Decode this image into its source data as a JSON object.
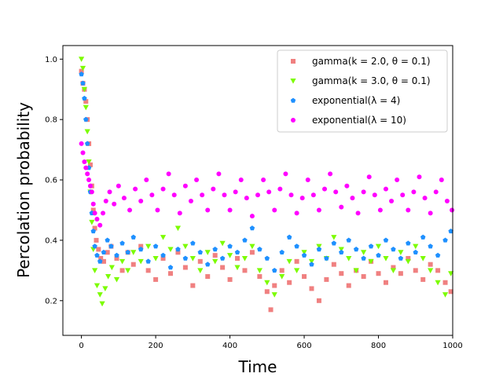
{
  "chart_data": {
    "type": "scatter",
    "xlabel": "Time",
    "ylabel": "Percolation probability",
    "xlim": [
      -50,
      1000
    ],
    "ylim": [
      0.085,
      1.045
    ],
    "x_ticks": [
      0,
      200,
      400,
      600,
      800,
      1000
    ],
    "y_ticks": [
      0.2,
      0.4,
      0.6,
      0.8,
      1.0
    ],
    "x_tick_labels": [
      "0",
      "200",
      "400",
      "600",
      "800",
      "1000"
    ],
    "y_tick_labels": [
      "0.2",
      "0.4",
      "0.6",
      "0.8",
      "1.0"
    ],
    "legend_position": "top-right",
    "grid": false,
    "series": [
      {
        "name": "gamma(k = 2.0, θ = 0.1)",
        "color": "#F08080",
        "marker": "square",
        "points": [
          [
            0,
            0.96
          ],
          [
            4,
            0.92
          ],
          [
            8,
            0.9
          ],
          [
            12,
            0.86
          ],
          [
            16,
            0.8
          ],
          [
            20,
            0.72
          ],
          [
            24,
            0.65
          ],
          [
            28,
            0.58
          ],
          [
            32,
            0.5
          ],
          [
            36,
            0.44
          ],
          [
            40,
            0.4
          ],
          [
            46,
            0.37
          ],
          [
            52,
            0.34
          ],
          [
            60,
            0.33
          ],
          [
            70,
            0.36
          ],
          [
            80,
            0.38
          ],
          [
            95,
            0.34
          ],
          [
            110,
            0.3
          ],
          [
            125,
            0.36
          ],
          [
            140,
            0.32
          ],
          [
            160,
            0.38
          ],
          [
            180,
            0.3
          ],
          [
            200,
            0.27
          ],
          [
            220,
            0.34
          ],
          [
            240,
            0.29
          ],
          [
            260,
            0.36
          ],
          [
            280,
            0.31
          ],
          [
            300,
            0.25
          ],
          [
            320,
            0.33
          ],
          [
            340,
            0.28
          ],
          [
            360,
            0.35
          ],
          [
            380,
            0.31
          ],
          [
            400,
            0.27
          ],
          [
            420,
            0.34
          ],
          [
            440,
            0.3
          ],
          [
            460,
            0.36
          ],
          [
            480,
            0.28
          ],
          [
            500,
            0.23
          ],
          [
            510,
            0.17
          ],
          [
            520,
            0.25
          ],
          [
            540,
            0.3
          ],
          [
            560,
            0.26
          ],
          [
            580,
            0.33
          ],
          [
            600,
            0.28
          ],
          [
            620,
            0.24
          ],
          [
            640,
            0.2
          ],
          [
            660,
            0.27
          ],
          [
            680,
            0.32
          ],
          [
            700,
            0.29
          ],
          [
            720,
            0.25
          ],
          [
            740,
            0.3
          ],
          [
            760,
            0.28
          ],
          [
            780,
            0.33
          ],
          [
            800,
            0.29
          ],
          [
            820,
            0.26
          ],
          [
            840,
            0.31
          ],
          [
            860,
            0.29
          ],
          [
            880,
            0.34
          ],
          [
            900,
            0.3
          ],
          [
            920,
            0.27
          ],
          [
            940,
            0.32
          ],
          [
            960,
            0.3
          ],
          [
            980,
            0.26
          ],
          [
            995,
            0.23
          ]
        ]
      },
      {
        "name": "gamma(k = 3.0, θ = 0.1)",
        "color": "#7CFC00",
        "marker": "triangle-down",
        "points": [
          [
            0,
            1.0
          ],
          [
            4,
            0.97
          ],
          [
            8,
            0.9
          ],
          [
            12,
            0.84
          ],
          [
            16,
            0.76
          ],
          [
            20,
            0.66
          ],
          [
            24,
            0.56
          ],
          [
            28,
            0.46
          ],
          [
            32,
            0.37
          ],
          [
            36,
            0.3
          ],
          [
            42,
            0.25
          ],
          [
            50,
            0.22
          ],
          [
            56,
            0.19
          ],
          [
            64,
            0.24
          ],
          [
            72,
            0.28
          ],
          [
            82,
            0.31
          ],
          [
            95,
            0.27
          ],
          [
            110,
            0.33
          ],
          [
            125,
            0.3
          ],
          [
            140,
            0.36
          ],
          [
            160,
            0.33
          ],
          [
            180,
            0.38
          ],
          [
            200,
            0.34
          ],
          [
            220,
            0.41
          ],
          [
            240,
            0.37
          ],
          [
            260,
            0.44
          ],
          [
            280,
            0.38
          ],
          [
            300,
            0.34
          ],
          [
            320,
            0.3
          ],
          [
            340,
            0.36
          ],
          [
            360,
            0.33
          ],
          [
            380,
            0.39
          ],
          [
            400,
            0.35
          ],
          [
            420,
            0.31
          ],
          [
            440,
            0.34
          ],
          [
            460,
            0.38
          ],
          [
            480,
            0.3
          ],
          [
            500,
            0.26
          ],
          [
            520,
            0.22
          ],
          [
            540,
            0.28
          ],
          [
            560,
            0.33
          ],
          [
            580,
            0.3
          ],
          [
            600,
            0.36
          ],
          [
            620,
            0.33
          ],
          [
            640,
            0.38
          ],
          [
            660,
            0.34
          ],
          [
            680,
            0.41
          ],
          [
            700,
            0.37
          ],
          [
            720,
            0.34
          ],
          [
            740,
            0.3
          ],
          [
            760,
            0.36
          ],
          [
            780,
            0.33
          ],
          [
            800,
            0.38
          ],
          [
            820,
            0.34
          ],
          [
            840,
            0.3
          ],
          [
            860,
            0.36
          ],
          [
            880,
            0.33
          ],
          [
            900,
            0.38
          ],
          [
            920,
            0.34
          ],
          [
            940,
            0.3
          ],
          [
            960,
            0.26
          ],
          [
            980,
            0.22
          ],
          [
            995,
            0.29
          ]
        ]
      },
      {
        "name": "exponential(λ = 4)",
        "color": "#1E90FF",
        "marker": "pentagon",
        "points": [
          [
            0,
            0.95
          ],
          [
            4,
            0.92
          ],
          [
            8,
            0.87
          ],
          [
            12,
            0.8
          ],
          [
            16,
            0.72
          ],
          [
            20,
            0.64
          ],
          [
            24,
            0.56
          ],
          [
            28,
            0.49
          ],
          [
            32,
            0.43
          ],
          [
            36,
            0.38
          ],
          [
            42,
            0.35
          ],
          [
            50,
            0.33
          ],
          [
            60,
            0.36
          ],
          [
            70,
            0.4
          ],
          [
            80,
            0.38
          ],
          [
            95,
            0.35
          ],
          [
            110,
            0.39
          ],
          [
            125,
            0.36
          ],
          [
            140,
            0.41
          ],
          [
            160,
            0.37
          ],
          [
            180,
            0.33
          ],
          [
            200,
            0.38
          ],
          [
            220,
            0.35
          ],
          [
            240,
            0.31
          ],
          [
            260,
            0.37
          ],
          [
            280,
            0.34
          ],
          [
            300,
            0.39
          ],
          [
            320,
            0.36
          ],
          [
            340,
            0.32
          ],
          [
            360,
            0.37
          ],
          [
            380,
            0.34
          ],
          [
            400,
            0.38
          ],
          [
            420,
            0.36
          ],
          [
            440,
            0.4
          ],
          [
            460,
            0.44
          ],
          [
            480,
            0.37
          ],
          [
            500,
            0.34
          ],
          [
            520,
            0.3
          ],
          [
            540,
            0.36
          ],
          [
            560,
            0.41
          ],
          [
            580,
            0.38
          ],
          [
            600,
            0.35
          ],
          [
            620,
            0.32
          ],
          [
            640,
            0.37
          ],
          [
            660,
            0.34
          ],
          [
            680,
            0.39
          ],
          [
            700,
            0.36
          ],
          [
            720,
            0.4
          ],
          [
            740,
            0.37
          ],
          [
            760,
            0.34
          ],
          [
            780,
            0.38
          ],
          [
            800,
            0.35
          ],
          [
            820,
            0.4
          ],
          [
            840,
            0.37
          ],
          [
            860,
            0.34
          ],
          [
            880,
            0.39
          ],
          [
            900,
            0.36
          ],
          [
            920,
            0.41
          ],
          [
            940,
            0.38
          ],
          [
            960,
            0.35
          ],
          [
            980,
            0.4
          ],
          [
            995,
            0.43
          ]
        ]
      },
      {
        "name": "exponential(λ = 10)",
        "color": "#FF00FF",
        "marker": "circle",
        "points": [
          [
            0,
            0.72
          ],
          [
            4,
            0.69
          ],
          [
            8,
            0.66
          ],
          [
            12,
            0.64
          ],
          [
            16,
            0.62
          ],
          [
            20,
            0.6
          ],
          [
            24,
            0.58
          ],
          [
            28,
            0.56
          ],
          [
            32,
            0.52
          ],
          [
            36,
            0.49
          ],
          [
            42,
            0.47
          ],
          [
            50,
            0.45
          ],
          [
            58,
            0.49
          ],
          [
            66,
            0.53
          ],
          [
            76,
            0.56
          ],
          [
            88,
            0.52
          ],
          [
            100,
            0.58
          ],
          [
            115,
            0.54
          ],
          [
            130,
            0.5
          ],
          [
            145,
            0.57
          ],
          [
            160,
            0.53
          ],
          [
            175,
            0.6
          ],
          [
            190,
            0.55
          ],
          [
            205,
            0.5
          ],
          [
            220,
            0.57
          ],
          [
            235,
            0.62
          ],
          [
            250,
            0.55
          ],
          [
            265,
            0.49
          ],
          [
            280,
            0.58
          ],
          [
            295,
            0.53
          ],
          [
            310,
            0.6
          ],
          [
            325,
            0.55
          ],
          [
            340,
            0.5
          ],
          [
            355,
            0.57
          ],
          [
            370,
            0.62
          ],
          [
            385,
            0.55
          ],
          [
            400,
            0.5
          ],
          [
            415,
            0.56
          ],
          [
            430,
            0.6
          ],
          [
            445,
            0.54
          ],
          [
            460,
            0.48
          ],
          [
            475,
            0.55
          ],
          [
            490,
            0.6
          ],
          [
            505,
            0.56
          ],
          [
            520,
            0.5
          ],
          [
            535,
            0.57
          ],
          [
            550,
            0.62
          ],
          [
            565,
            0.55
          ],
          [
            580,
            0.49
          ],
          [
            595,
            0.54
          ],
          [
            610,
            0.6
          ],
          [
            625,
            0.55
          ],
          [
            640,
            0.5
          ],
          [
            655,
            0.57
          ],
          [
            670,
            0.62
          ],
          [
            685,
            0.56
          ],
          [
            700,
            0.51
          ],
          [
            715,
            0.58
          ],
          [
            730,
            0.54
          ],
          [
            745,
            0.49
          ],
          [
            760,
            0.56
          ],
          [
            775,
            0.61
          ],
          [
            790,
            0.55
          ],
          [
            805,
            0.5
          ],
          [
            820,
            0.57
          ],
          [
            835,
            0.53
          ],
          [
            850,
            0.6
          ],
          [
            865,
            0.55
          ],
          [
            880,
            0.5
          ],
          [
            895,
            0.56
          ],
          [
            910,
            0.61
          ],
          [
            925,
            0.54
          ],
          [
            940,
            0.49
          ],
          [
            955,
            0.56
          ],
          [
            970,
            0.6
          ],
          [
            985,
            0.53
          ],
          [
            998,
            0.5
          ]
        ]
      }
    ]
  }
}
